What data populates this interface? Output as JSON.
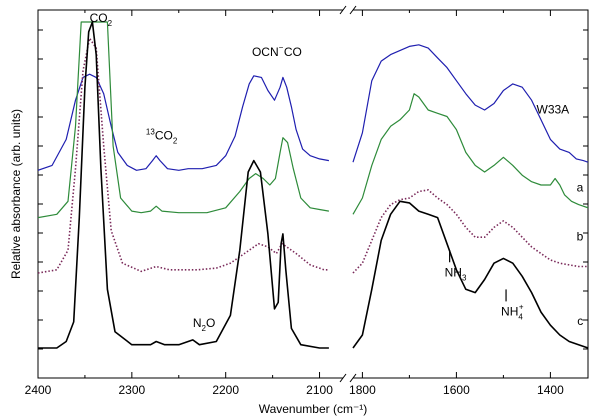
{
  "chart_data": {
    "type": "line",
    "xlabel": "Wavenumber (cm⁻¹)",
    "ylabel": "Relative absorbance (arb. units)",
    "x_axis_break": [
      2090,
      1800
    ],
    "x_segments": [
      {
        "xlim": [
          2400,
          2075
        ],
        "ticks": [
          2400,
          2300,
          2200,
          2100
        ]
      },
      {
        "xlim": [
          1820,
          1320
        ],
        "ticks": [
          1800,
          1600,
          1400
        ]
      }
    ],
    "tick_labels": [
      "2400",
      "2300",
      "2200",
      "2100",
      "1800",
      "1600",
      "1400"
    ],
    "ylim": [
      0,
      1
    ],
    "series": [
      {
        "name": "W33A",
        "color": "#1f1fb0",
        "style": "solid",
        "points": [
          [
            2400,
            0.545
          ],
          [
            2385,
            0.56
          ],
          [
            2370,
            0.64
          ],
          [
            2360,
            0.76
          ],
          [
            2352,
            0.83
          ],
          [
            2345,
            0.84
          ],
          [
            2338,
            0.83
          ],
          [
            2330,
            0.78
          ],
          [
            2322,
            0.68
          ],
          [
            2315,
            0.6
          ],
          [
            2305,
            0.56
          ],
          [
            2295,
            0.545
          ],
          [
            2285,
            0.55
          ],
          [
            2278,
            0.575
          ],
          [
            2274,
            0.59
          ],
          [
            2270,
            0.575
          ],
          [
            2262,
            0.55
          ],
          [
            2250,
            0.545
          ],
          [
            2240,
            0.55
          ],
          [
            2225,
            0.55
          ],
          [
            2210,
            0.56
          ],
          [
            2200,
            0.59
          ],
          [
            2190,
            0.65
          ],
          [
            2182,
            0.74
          ],
          [
            2175,
            0.81
          ],
          [
            2170,
            0.835
          ],
          [
            2162,
            0.83
          ],
          [
            2155,
            0.79
          ],
          [
            2148,
            0.76
          ],
          [
            2142,
            0.8
          ],
          [
            2139,
            0.83
          ],
          [
            2135,
            0.8
          ],
          [
            2130,
            0.74
          ],
          [
            2125,
            0.67
          ],
          [
            2118,
            0.61
          ],
          [
            2110,
            0.59
          ],
          [
            2100,
            0.58
          ],
          [
            2090,
            0.575
          ],
          [
            1820,
            0.57
          ],
          [
            1800,
            0.66
          ],
          [
            1780,
            0.82
          ],
          [
            1760,
            0.88
          ],
          [
            1740,
            0.9
          ],
          [
            1700,
            0.925
          ],
          [
            1680,
            0.93
          ],
          [
            1660,
            0.92
          ],
          [
            1640,
            0.89
          ],
          [
            1620,
            0.86
          ],
          [
            1600,
            0.82
          ],
          [
            1580,
            0.78
          ],
          [
            1560,
            0.745
          ],
          [
            1540,
            0.73
          ],
          [
            1520,
            0.75
          ],
          [
            1500,
            0.79
          ],
          [
            1480,
            0.81
          ],
          [
            1460,
            0.8
          ],
          [
            1440,
            0.76
          ],
          [
            1420,
            0.7
          ],
          [
            1400,
            0.64
          ],
          [
            1380,
            0.61
          ],
          [
            1360,
            0.6
          ],
          [
            1345,
            0.58
          ],
          [
            1330,
            0.575
          ],
          [
            1320,
            0.57
          ]
        ]
      },
      {
        "name": "a",
        "color": "#2e8b3a",
        "style": "solid",
        "points": [
          [
            2400,
            0.4
          ],
          [
            2380,
            0.41
          ],
          [
            2368,
            0.45
          ],
          [
            2360,
            0.68
          ],
          [
            2354,
            1.0
          ],
          [
            2326,
            1.0
          ],
          [
            2320,
            0.62
          ],
          [
            2312,
            0.46
          ],
          [
            2300,
            0.42
          ],
          [
            2290,
            0.415
          ],
          [
            2280,
            0.42
          ],
          [
            2274,
            0.435
          ],
          [
            2268,
            0.42
          ],
          [
            2250,
            0.415
          ],
          [
            2220,
            0.415
          ],
          [
            2200,
            0.43
          ],
          [
            2185,
            0.48
          ],
          [
            2175,
            0.52
          ],
          [
            2168,
            0.535
          ],
          [
            2160,
            0.52
          ],
          [
            2153,
            0.5
          ],
          [
            2147,
            0.52
          ],
          [
            2142,
            0.6
          ],
          [
            2139,
            0.645
          ],
          [
            2134,
            0.63
          ],
          [
            2128,
            0.55
          ],
          [
            2120,
            0.46
          ],
          [
            2110,
            0.43
          ],
          [
            2100,
            0.425
          ],
          [
            2090,
            0.42
          ],
          [
            1820,
            0.41
          ],
          [
            1800,
            0.46
          ],
          [
            1780,
            0.56
          ],
          [
            1760,
            0.64
          ],
          [
            1740,
            0.68
          ],
          [
            1720,
            0.7
          ],
          [
            1700,
            0.73
          ],
          [
            1690,
            0.78
          ],
          [
            1680,
            0.77
          ],
          [
            1660,
            0.73
          ],
          [
            1640,
            0.72
          ],
          [
            1620,
            0.71
          ],
          [
            1600,
            0.67
          ],
          [
            1580,
            0.6
          ],
          [
            1560,
            0.56
          ],
          [
            1540,
            0.54
          ],
          [
            1520,
            0.56
          ],
          [
            1500,
            0.585
          ],
          [
            1480,
            0.56
          ],
          [
            1460,
            0.53
          ],
          [
            1440,
            0.51
          ],
          [
            1420,
            0.5
          ],
          [
            1400,
            0.5
          ],
          [
            1390,
            0.52
          ],
          [
            1380,
            0.5
          ],
          [
            1370,
            0.47
          ],
          [
            1355,
            0.45
          ],
          [
            1340,
            0.44
          ],
          [
            1320,
            0.43
          ]
        ]
      },
      {
        "name": "b",
        "color": "#7a2a5a",
        "style": "dotted",
        "points": [
          [
            2400,
            0.23
          ],
          [
            2380,
            0.24
          ],
          [
            2368,
            0.3
          ],
          [
            2360,
            0.55
          ],
          [
            2352,
            0.85
          ],
          [
            2345,
            0.95
          ],
          [
            2338,
            0.92
          ],
          [
            2330,
            0.62
          ],
          [
            2322,
            0.36
          ],
          [
            2310,
            0.26
          ],
          [
            2290,
            0.235
          ],
          [
            2274,
            0.25
          ],
          [
            2260,
            0.24
          ],
          [
            2230,
            0.24
          ],
          [
            2210,
            0.245
          ],
          [
            2195,
            0.26
          ],
          [
            2180,
            0.29
          ],
          [
            2165,
            0.32
          ],
          [
            2155,
            0.31
          ],
          [
            2146,
            0.29
          ],
          [
            2140,
            0.32
          ],
          [
            2135,
            0.31
          ],
          [
            2125,
            0.29
          ],
          [
            2110,
            0.255
          ],
          [
            2095,
            0.24
          ],
          [
            2090,
            0.24
          ],
          [
            1820,
            0.23
          ],
          [
            1800,
            0.26
          ],
          [
            1780,
            0.33
          ],
          [
            1760,
            0.4
          ],
          [
            1740,
            0.44
          ],
          [
            1720,
            0.455
          ],
          [
            1700,
            0.46
          ],
          [
            1680,
            0.48
          ],
          [
            1660,
            0.485
          ],
          [
            1640,
            0.46
          ],
          [
            1620,
            0.44
          ],
          [
            1600,
            0.41
          ],
          [
            1580,
            0.37
          ],
          [
            1560,
            0.34
          ],
          [
            1540,
            0.34
          ],
          [
            1520,
            0.37
          ],
          [
            1500,
            0.39
          ],
          [
            1480,
            0.37
          ],
          [
            1460,
            0.34
          ],
          [
            1440,
            0.31
          ],
          [
            1420,
            0.29
          ],
          [
            1400,
            0.27
          ],
          [
            1380,
            0.26
          ],
          [
            1360,
            0.255
          ],
          [
            1340,
            0.25
          ],
          [
            1320,
            0.25
          ]
        ]
      },
      {
        "name": "c",
        "color": "#000000",
        "style": "solid",
        "points": [
          [
            2400,
            0.0
          ],
          [
            2380,
            0.0
          ],
          [
            2370,
            0.02
          ],
          [
            2362,
            0.08
          ],
          [
            2356,
            0.4
          ],
          [
            2350,
            0.8
          ],
          [
            2346,
            0.97
          ],
          [
            2342,
            1.0
          ],
          [
            2338,
            0.9
          ],
          [
            2333,
            0.55
          ],
          [
            2326,
            0.18
          ],
          [
            2318,
            0.05
          ],
          [
            2300,
            0.01
          ],
          [
            2280,
            0.01
          ],
          [
            2274,
            0.02
          ],
          [
            2265,
            0.01
          ],
          [
            2250,
            0.01
          ],
          [
            2235,
            0.025
          ],
          [
            2228,
            0.01
          ],
          [
            2210,
            0.02
          ],
          [
            2195,
            0.1
          ],
          [
            2185,
            0.3
          ],
          [
            2176,
            0.54
          ],
          [
            2170,
            0.575
          ],
          [
            2163,
            0.54
          ],
          [
            2155,
            0.35
          ],
          [
            2148,
            0.12
          ],
          [
            2144,
            0.14
          ],
          [
            2141,
            0.32
          ],
          [
            2139,
            0.35
          ],
          [
            2136,
            0.24
          ],
          [
            2130,
            0.06
          ],
          [
            2120,
            0.01
          ],
          [
            2100,
            0.0
          ],
          [
            2090,
            0.0
          ],
          [
            1820,
            0.0
          ],
          [
            1800,
            0.04
          ],
          [
            1780,
            0.18
          ],
          [
            1760,
            0.33
          ],
          [
            1740,
            0.41
          ],
          [
            1720,
            0.45
          ],
          [
            1700,
            0.445
          ],
          [
            1680,
            0.42
          ],
          [
            1660,
            0.41
          ],
          [
            1640,
            0.4
          ],
          [
            1620,
            0.32
          ],
          [
            1600,
            0.24
          ],
          [
            1580,
            0.18
          ],
          [
            1560,
            0.17
          ],
          [
            1540,
            0.21
          ],
          [
            1520,
            0.26
          ],
          [
            1500,
            0.275
          ],
          [
            1480,
            0.26
          ],
          [
            1460,
            0.22
          ],
          [
            1440,
            0.17
          ],
          [
            1420,
            0.11
          ],
          [
            1400,
            0.07
          ],
          [
            1380,
            0.04
          ],
          [
            1360,
            0.02
          ],
          [
            1340,
            0.01
          ],
          [
            1320,
            0.0
          ]
        ]
      }
    ],
    "annotations": [
      {
        "id": "co2",
        "text": "CO",
        "sub": "2",
        "x": 2345,
        "y": 1.0
      },
      {
        "id": "13co2",
        "text": "CO",
        "pre_sup": "13",
        "sub": "2",
        "x": 2285,
        "y": 0.64
      },
      {
        "id": "ocn",
        "text": "OCN",
        "sup": "−",
        "x": 2172,
        "y": 0.895
      },
      {
        "id": "co",
        "text": "CO",
        "x": 2138,
        "y": 0.895
      },
      {
        "id": "n2o",
        "text": "N",
        "sub": "2",
        "after": "O",
        "x": 2235,
        "y": 0.065
      },
      {
        "id": "nh3",
        "text": "NH",
        "sub": "3",
        "x": 1625,
        "y": 0.22
      },
      {
        "id": "nh4",
        "text": "NH",
        "sub": "4",
        "sup": "+",
        "x": 1505,
        "y": 0.1
      }
    ],
    "series_labels": [
      {
        "series": "W33A",
        "text": "W33A",
        "x": 1360,
        "y": 0.72
      },
      {
        "series": "a",
        "text": "a",
        "x": 1330,
        "y": 0.48
      },
      {
        "series": "b",
        "text": "b",
        "x": 1330,
        "y": 0.33
      },
      {
        "series": "c",
        "text": "c",
        "x": 1330,
        "y": 0.07
      }
    ]
  }
}
